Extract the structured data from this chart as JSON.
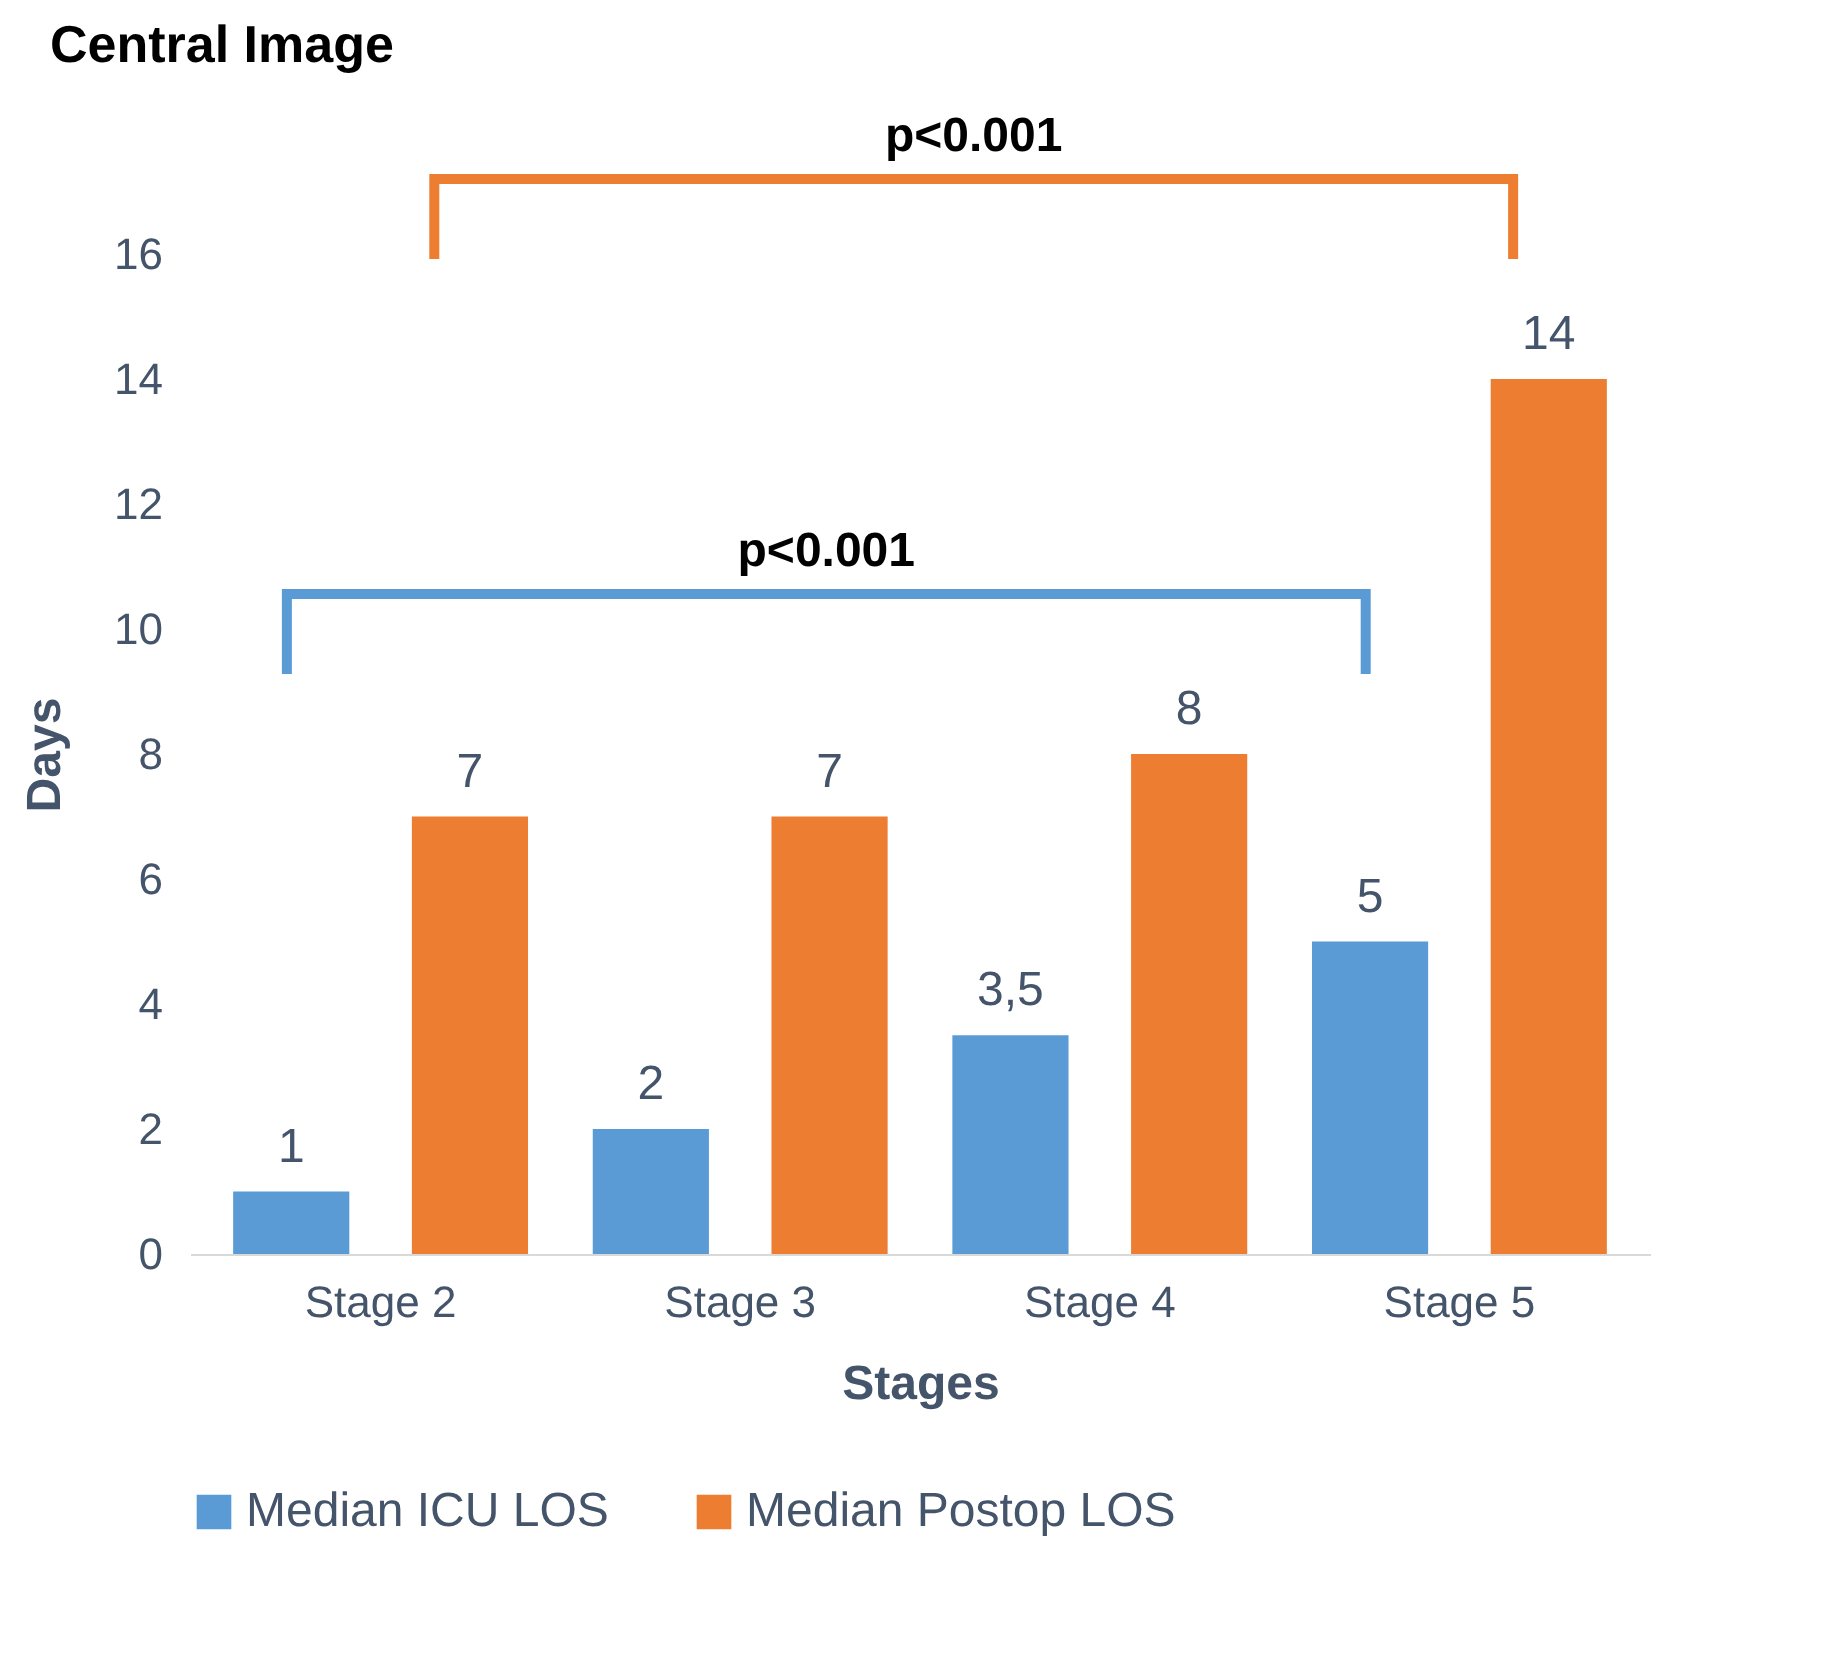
{
  "chart_data": {
    "type": "bar",
    "title": "Central Image",
    "xlabel": "Stages",
    "ylabel": "Days",
    "categories": [
      "Stage 2",
      "Stage 3",
      "Stage 4",
      "Stage 5"
    ],
    "series": [
      {
        "name": "Median ICU LOS",
        "color": "#5b9bd5",
        "values": [
          1,
          2,
          3.5,
          5
        ],
        "value_labels": [
          "1",
          "2",
          "3,5",
          "5"
        ]
      },
      {
        "name": "Median Postop LOS",
        "color": "#ed7d31",
        "values": [
          7,
          7,
          8,
          14
        ],
        "value_labels": [
          "7",
          "7",
          "8",
          "14"
        ]
      }
    ],
    "ylim": [
      0,
      16
    ],
    "yticks": [
      0,
      2,
      4,
      6,
      8,
      10,
      12,
      14,
      16
    ],
    "grid": false,
    "legend": "bottom",
    "annotations": [
      "p<0.001",
      "p<0.001"
    ]
  }
}
